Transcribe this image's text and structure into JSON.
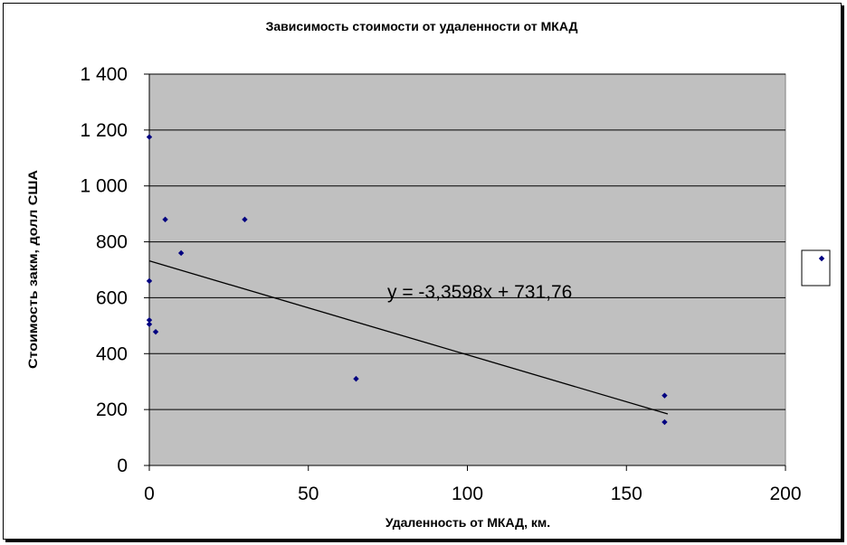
{
  "chart_data": {
    "type": "scatter",
    "title": "Зависимость стоимости от удаленности от МКАД",
    "xlabel": "Удаленность от МКАД, км.",
    "ylabel": "Стоимость закм, долл США",
    "xlim": [
      0,
      200
    ],
    "ylim": [
      0,
      1400
    ],
    "x_ticks": [
      0,
      50,
      100,
      150,
      200
    ],
    "y_ticks": [
      0,
      200,
      400,
      600,
      800,
      1000,
      1200,
      1400
    ],
    "x_tick_labels": [
      "0",
      "50",
      "100",
      "150",
      "200"
    ],
    "y_tick_labels": [
      "0",
      "200",
      "400",
      "600",
      "800",
      "1 000",
      "1 200",
      "1 400"
    ],
    "grid": "horizontal",
    "plot_background": "#c0c0c0",
    "marker_color": "#000080",
    "series": [
      {
        "points": [
          {
            "x": 0,
            "y": 1175
          },
          {
            "x": 0,
            "y": 660
          },
          {
            "x": 0,
            "y": 520
          },
          {
            "x": 0,
            "y": 505
          },
          {
            "x": 2,
            "y": 478
          },
          {
            "x": 5,
            "y": 880
          },
          {
            "x": 10,
            "y": 760
          },
          {
            "x": 30,
            "y": 880
          },
          {
            "x": 65,
            "y": 310
          },
          {
            "x": 162,
            "y": 250
          },
          {
            "x": 162,
            "y": 155
          }
        ]
      }
    ],
    "trendline": {
      "slope": -3.3598,
      "intercept": 731.76,
      "x_range": [
        0,
        163
      ],
      "equation": "y = -3,3598x + 731,76"
    },
    "legend": {
      "position": "right",
      "entries": [
        ""
      ]
    }
  }
}
